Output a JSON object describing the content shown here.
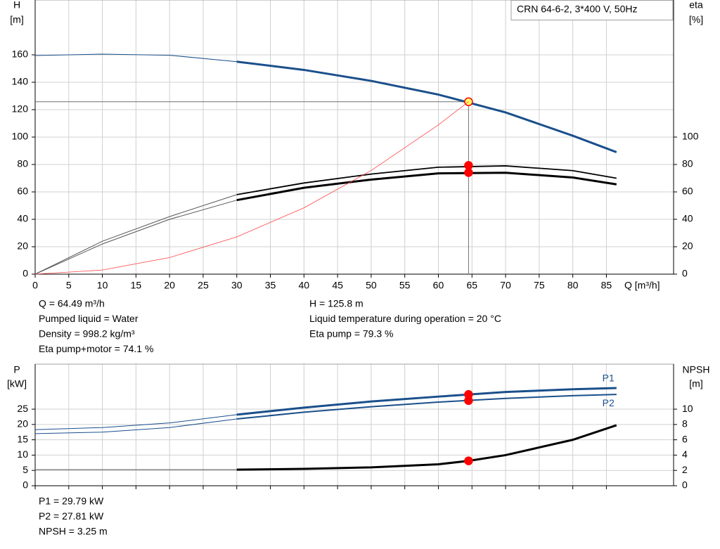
{
  "chart_data": [
    {
      "type": "line",
      "model_label": "CRN 64-6-2, 3*400 V, 50Hz",
      "y_label": "H",
      "y_unit": "[m]",
      "y2_label": "eta",
      "y2_unit": "[%]",
      "x_label": "Q [m³/h]",
      "xlim": [
        0,
        95
      ],
      "ylim": [
        0,
        200
      ],
      "y2lim": [
        0,
        200
      ],
      "xticks": [
        0,
        5,
        10,
        15,
        20,
        25,
        30,
        35,
        40,
        45,
        50,
        55,
        60,
        65,
        70,
        75,
        80,
        85
      ],
      "yticks": [
        0,
        20,
        40,
        60,
        80,
        100,
        120,
        140,
        160
      ],
      "y2ticks": [
        0,
        20,
        40,
        60,
        80,
        100
      ],
      "xtick_labels": true,
      "grid": true,
      "thick_from": 30,
      "operating_q": 64.49,
      "operating_h": 125.8,
      "series": [
        {
          "color": "#1a4f8b",
          "width": 3,
          "point": 125.8,
          "point_fill": "#ffff66",
          "x": [
            0,
            10,
            20,
            30,
            40,
            50,
            60,
            70,
            80,
            86.5
          ],
          "values": [
            159.5,
            160.5,
            159.7,
            155,
            149,
            141,
            131,
            118,
            101,
            89
          ]
        },
        {
          "color": "#000000",
          "width": 1.8,
          "axis": "y2",
          "point": 79.3,
          "point_fill": "#ff0000",
          "x": [
            0,
            10,
            20,
            30,
            40,
            50,
            60,
            70,
            80,
            86.5
          ],
          "values": [
            0,
            24,
            42,
            58,
            66.5,
            73,
            78,
            79,
            75.5,
            70
          ]
        },
        {
          "color": "#000000",
          "width": 3,
          "axis": "y2",
          "point": 74.1,
          "point_fill": "#ff0000",
          "x": [
            0,
            10,
            20,
            30,
            40,
            50,
            60,
            70,
            80,
            86.5
          ],
          "values": [
            0,
            22,
            40,
            54,
            63,
            69,
            73.5,
            74,
            70.5,
            65.5
          ]
        },
        {
          "color": "#ff4444",
          "width": 0.8,
          "thin_only": true,
          "x": [
            0,
            10,
            20,
            30,
            40,
            50,
            60,
            64.49
          ],
          "values": [
            0,
            3,
            12.1,
            27.2,
            48.4,
            75.6,
            108.9,
            125.8
          ]
        }
      ],
      "notes": [
        [
          "Q = 64.49 m³/h",
          "Pumped liquid = Water",
          "Density = 998.2 kg/m³",
          "Eta pump+motor = 74.1 %"
        ],
        [
          "H = 125.8 m",
          "Liquid temperature during operation = 20 °C",
          "Eta pump = 79.3 %"
        ]
      ]
    },
    {
      "type": "line",
      "y_label": "P",
      "y_unit": "[kW]",
      "y2_label": "NPSH",
      "y2_unit": "[m]",
      "xlim": [
        0,
        95
      ],
      "ylim": [
        0,
        39.7
      ],
      "y2lim": [
        0,
        15.88
      ],
      "xticks": [
        0,
        5,
        10,
        15,
        20,
        25,
        30,
        35,
        40,
        45,
        50,
        55,
        60,
        65,
        70,
        75,
        80,
        85
      ],
      "yticks": [
        0,
        5,
        10,
        15,
        20,
        25
      ],
      "y2ticks": [
        0,
        2,
        4,
        6,
        8,
        10
      ],
      "xtick_labels": false,
      "grid": true,
      "thick_from": 30,
      "operating_q": 64.49,
      "series": [
        {
          "name": "P1",
          "color": "#1a4f8b",
          "width": 3,
          "point": 29.79,
          "point_fill": "#ff0000",
          "label_side": "above",
          "x": [
            0,
            10,
            20,
            30,
            40,
            50,
            60,
            70,
            80,
            86.5
          ],
          "values": [
            18.3,
            19,
            20.5,
            23.2,
            25.5,
            27.5,
            29.1,
            30.6,
            31.5,
            31.9
          ]
        },
        {
          "name": "P2",
          "color": "#1a4f8b",
          "width": 2,
          "point": 27.81,
          "point_fill": "#ff0000",
          "label_side": "below",
          "x": [
            0,
            10,
            20,
            30,
            40,
            50,
            60,
            70,
            80,
            86.5
          ],
          "values": [
            17,
            17.5,
            19,
            21.8,
            24,
            25.8,
            27.3,
            28.5,
            29.4,
            29.8
          ]
        },
        {
          "color": "#000000",
          "width": 3,
          "axis": "y2",
          "point": 3.25,
          "point_fill": "#ff0000",
          "x": [
            0,
            30,
            40,
            50,
            60,
            64.49,
            70,
            80,
            86.5
          ],
          "values": [
            2.1,
            2.1,
            2.2,
            2.4,
            2.8,
            3.25,
            4.0,
            6.0,
            7.9
          ]
        }
      ],
      "notes": [
        [
          "P1 = 29.79 kW",
          "P2 = 27.81 kW",
          "NPSH = 3.25 m"
        ]
      ]
    }
  ]
}
